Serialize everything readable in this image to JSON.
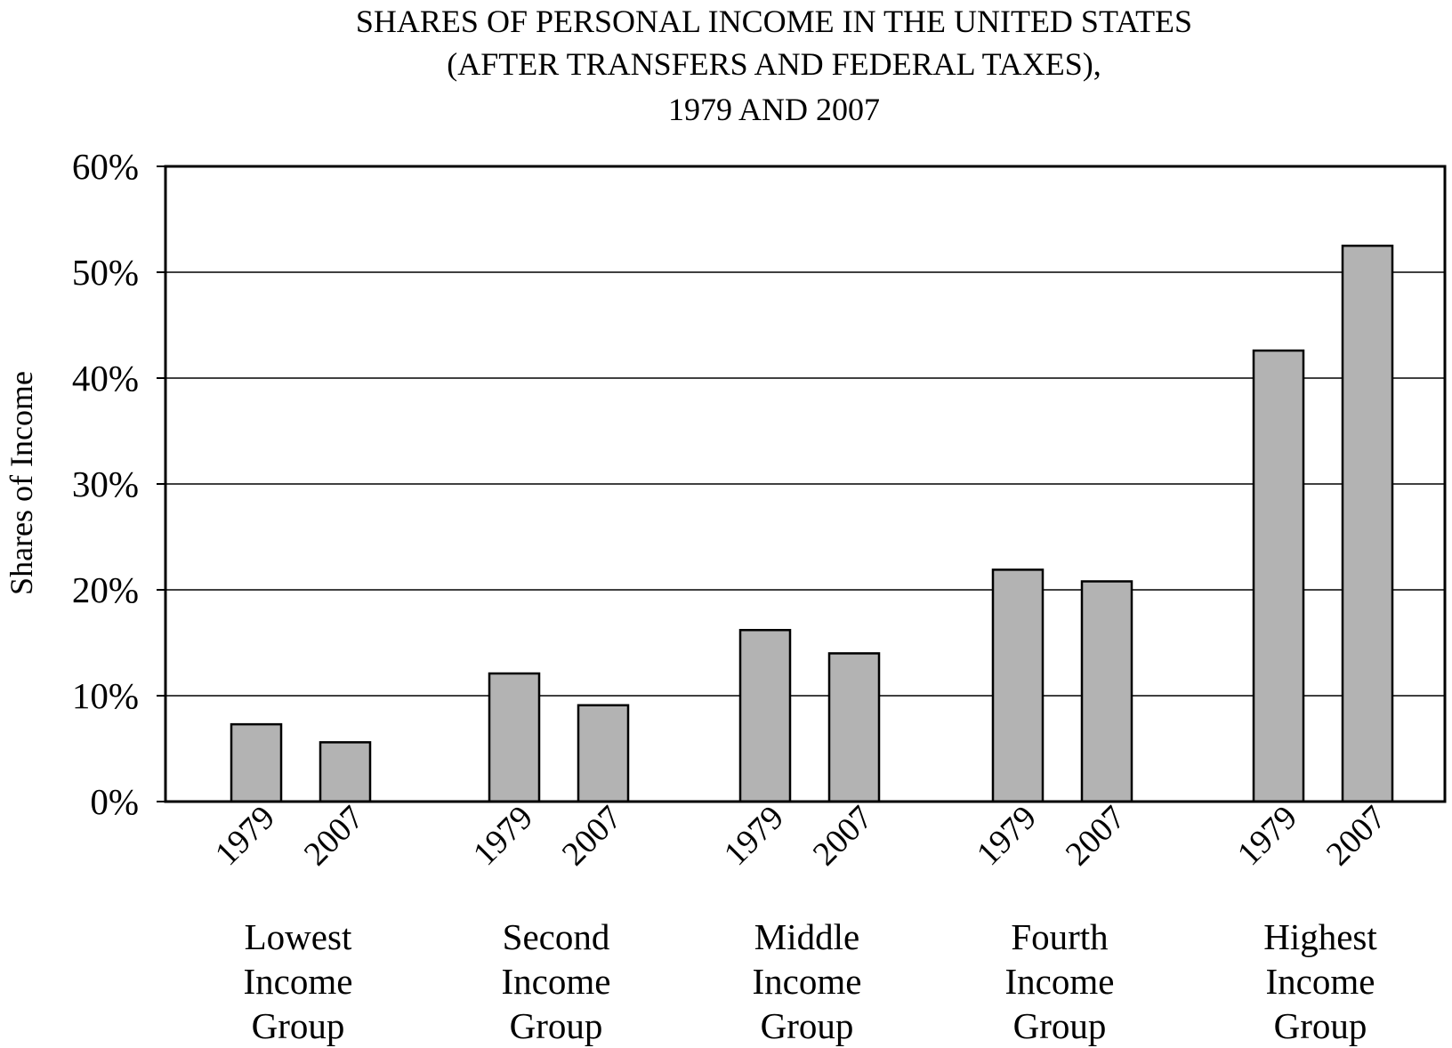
{
  "chart_data": {
    "type": "bar",
    "title": [
      "SHARES OF PERSONAL INCOME IN THE UNITED STATES",
      "(AFTER TRANSFERS AND FEDERAL TAXES),",
      "1979 AND 2007"
    ],
    "xlabel": "",
    "ylabel": "Shares of Income",
    "ylim": [
      0,
      60
    ],
    "yticks": [
      "0%",
      "10%",
      "20%",
      "30%",
      "40%",
      "50%",
      "60%"
    ],
    "grid": true,
    "categories": [
      [
        "Lowest",
        "Income",
        "Group"
      ],
      [
        "Second",
        "Income",
        "Group"
      ],
      [
        "Middle",
        "Income",
        "Group"
      ],
      [
        "Fourth",
        "Income",
        "Group"
      ],
      [
        "Highest",
        "Income",
        "Group"
      ]
    ],
    "bar_labels": [
      "1979",
      "2007"
    ],
    "series": [
      {
        "values": [
          7.3,
          12.1,
          16.2,
          21.9,
          42.6
        ]
      },
      {
        "values": [
          5.6,
          9.1,
          14.0,
          20.8,
          52.5
        ]
      }
    ],
    "bar_color": "#b3b3b3"
  }
}
